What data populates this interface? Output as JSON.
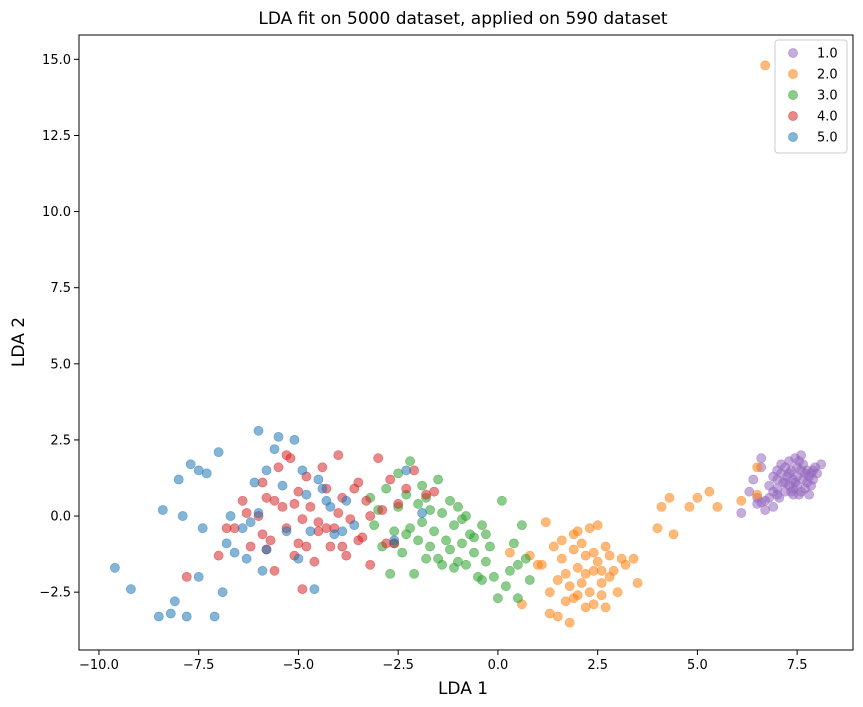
{
  "chart_data": {
    "type": "scatter",
    "title": "LDA fit on 5000 dataset, applied on 590 dataset",
    "xlabel": "LDA 1",
    "ylabel": "LDA 2",
    "xlim": [
      -10.5,
      8.9
    ],
    "ylim": [
      -4.4,
      15.8
    ],
    "xticks": [
      -10.0,
      -7.5,
      -5.0,
      -2.5,
      0.0,
      2.5,
      5.0,
      7.5
    ],
    "xtick_labels": [
      "−10.0",
      "−7.5",
      "−5.0",
      "−2.5",
      "0.0",
      "2.5",
      "5.0",
      "7.5"
    ],
    "yticks": [
      -2.5,
      0.0,
      2.5,
      5.0,
      7.5,
      10.0,
      12.5,
      15.0
    ],
    "ytick_labels": [
      "−2.5",
      "0.0",
      "2.5",
      "5.0",
      "7.5",
      "10.0",
      "12.5",
      "15.0"
    ],
    "grid": false,
    "legend_position": "top-right",
    "series": [
      {
        "name": "1.0",
        "color": "#9467bd",
        "points": [
          [
            6.1,
            0.1
          ],
          [
            6.3,
            0.8
          ],
          [
            6.4,
            1.2
          ],
          [
            6.5,
            0.6
          ],
          [
            6.5,
            0.4
          ],
          [
            6.6,
            1.6
          ],
          [
            6.6,
            1.9
          ],
          [
            6.7,
            0.5
          ],
          [
            6.7,
            0.2
          ],
          [
            6.8,
            1.0
          ],
          [
            6.8,
            0.6
          ],
          [
            6.9,
            1.3
          ],
          [
            6.9,
            0.8
          ],
          [
            7.0,
            1.5
          ],
          [
            7.0,
            1.2
          ],
          [
            7.0,
            0.9
          ],
          [
            7.05,
            0.6
          ],
          [
            7.1,
            1.7
          ],
          [
            7.1,
            1.4
          ],
          [
            7.15,
            1.1
          ],
          [
            7.2,
            0.8
          ],
          [
            7.2,
            1.6
          ],
          [
            7.25,
            1.3
          ],
          [
            7.3,
            1.0
          ],
          [
            7.3,
            1.8
          ],
          [
            7.35,
            1.5
          ],
          [
            7.4,
            1.2
          ],
          [
            7.4,
            0.9
          ],
          [
            7.45,
            1.9
          ],
          [
            7.5,
            1.6
          ],
          [
            7.5,
            1.3
          ],
          [
            7.5,
            1.0
          ],
          [
            7.55,
            0.7
          ],
          [
            7.6,
            2.0
          ],
          [
            7.6,
            1.5
          ],
          [
            7.65,
            1.2
          ],
          [
            7.7,
            0.9
          ],
          [
            7.7,
            1.4
          ],
          [
            7.75,
            1.1
          ],
          [
            7.8,
            1.3
          ],
          [
            7.8,
            0.7
          ],
          [
            7.85,
            1.0
          ],
          [
            7.9,
            1.5
          ],
          [
            7.9,
            1.2
          ],
          [
            7.95,
            1.6
          ],
          [
            8.0,
            1.4
          ],
          [
            8.1,
            1.7
          ],
          [
            7.6,
            0.8
          ],
          [
            7.4,
            0.7
          ],
          [
            7.3,
            1.4
          ],
          [
            7.2,
            1.1
          ],
          [
            7.65,
            1.7
          ],
          [
            7.55,
            1.8
          ],
          [
            7.45,
            1.1
          ],
          [
            7.35,
            0.8
          ],
          [
            7.75,
            1.5
          ],
          [
            7.85,
            1.4
          ],
          [
            6.9,
            0.3
          ],
          [
            6.6,
            0.45
          ],
          [
            7.0,
            0.7
          ]
        ]
      },
      {
        "name": "2.0",
        "color": "#ff7f0e",
        "points": [
          [
            0.3,
            -1.2
          ],
          [
            0.6,
            -2.9
          ],
          [
            0.8,
            -1.3
          ],
          [
            1.0,
            -1.6
          ],
          [
            1.2,
            -0.2
          ],
          [
            1.3,
            -3.2
          ],
          [
            1.3,
            -2.5
          ],
          [
            1.4,
            -1.0
          ],
          [
            1.5,
            -2.1
          ],
          [
            1.5,
            -3.3
          ],
          [
            1.6,
            -1.4
          ],
          [
            1.6,
            -0.8
          ],
          [
            1.7,
            -2.8
          ],
          [
            1.7,
            -1.9
          ],
          [
            1.8,
            -3.5
          ],
          [
            1.8,
            -2.3
          ],
          [
            1.9,
            -1.1
          ],
          [
            1.9,
            -0.6
          ],
          [
            2.0,
            -2.6
          ],
          [
            2.0,
            -1.7
          ],
          [
            2.1,
            -0.9
          ],
          [
            2.1,
            -2.2
          ],
          [
            2.2,
            -3.0
          ],
          [
            2.2,
            -1.3
          ],
          [
            2.3,
            -2.5
          ],
          [
            2.3,
            -0.4
          ],
          [
            2.4,
            -1.8
          ],
          [
            2.4,
            -2.9
          ],
          [
            2.5,
            -1.5
          ],
          [
            2.5,
            -0.3
          ],
          [
            2.6,
            -2.2
          ],
          [
            2.6,
            -2.6
          ],
          [
            2.7,
            -1.0
          ],
          [
            2.7,
            -3.0
          ],
          [
            2.8,
            -1.3
          ],
          [
            2.8,
            -2.0
          ],
          [
            2.9,
            -1.8
          ],
          [
            3.0,
            -2.5
          ],
          [
            3.1,
            -1.4
          ],
          [
            3.2,
            -1.6
          ],
          [
            3.4,
            -1.4
          ],
          [
            3.5,
            -2.2
          ],
          [
            2.2,
            -1.9
          ],
          [
            1.9,
            -2.7
          ],
          [
            2.0,
            -0.5
          ],
          [
            4.0,
            -0.4
          ],
          [
            4.1,
            0.3
          ],
          [
            4.3,
            0.6
          ],
          [
            4.4,
            -0.6
          ],
          [
            4.8,
            0.3
          ],
          [
            5.0,
            0.6
          ],
          [
            5.3,
            0.8
          ],
          [
            5.5,
            0.3
          ],
          [
            6.1,
            0.5
          ],
          [
            6.5,
            0.7
          ],
          [
            6.5,
            1.6
          ],
          [
            6.7,
            14.8
          ],
          [
            2.4,
            -1.2
          ],
          [
            1.1,
            -1.6
          ],
          [
            2.6,
            -1.8
          ]
        ]
      },
      {
        "name": "3.0",
        "color": "#2ca02c",
        "points": [
          [
            -3.2,
            0.6
          ],
          [
            -3.1,
            -0.3
          ],
          [
            -3.0,
            0.2
          ],
          [
            -2.9,
            -1.0
          ],
          [
            -2.8,
            0.9
          ],
          [
            -2.7,
            -1.9
          ],
          [
            -2.6,
            -0.5
          ],
          [
            -2.5,
            1.4
          ],
          [
            -2.5,
            0.3
          ],
          [
            -2.4,
            -1.2
          ],
          [
            -2.3,
            0.7
          ],
          [
            -2.2,
            -0.4
          ],
          [
            -2.2,
            1.8
          ],
          [
            -2.1,
            -1.9
          ],
          [
            -2.0,
            0.4
          ],
          [
            -2.0,
            -0.8
          ],
          [
            -1.9,
            1.0
          ],
          [
            -1.9,
            -0.2
          ],
          [
            -1.8,
            0.6
          ],
          [
            -1.7,
            -1.0
          ],
          [
            -1.7,
            0.2
          ],
          [
            -1.6,
            -0.5
          ],
          [
            -1.5,
            1.2
          ],
          [
            -1.5,
            -1.4
          ],
          [
            -1.4,
            0.1
          ],
          [
            -1.3,
            -0.8
          ],
          [
            -1.2,
            0.5
          ],
          [
            -1.2,
            -1.1
          ],
          [
            -1.1,
            -0.3
          ],
          [
            -1.0,
            -1.5
          ],
          [
            -1.0,
            0.3
          ],
          [
            -0.9,
            -0.9
          ],
          [
            -0.8,
            -1.6
          ],
          [
            -0.8,
            0.0
          ],
          [
            -0.7,
            -0.6
          ],
          [
            -0.6,
            -1.2
          ],
          [
            -0.5,
            -2.0
          ],
          [
            -0.4,
            -0.3
          ],
          [
            -0.3,
            -1.5
          ],
          [
            -0.2,
            -1.0
          ],
          [
            -0.1,
            -2.0
          ],
          [
            0.0,
            -2.7
          ],
          [
            0.1,
            0.5
          ],
          [
            0.2,
            -2.3
          ],
          [
            0.3,
            -1.8
          ],
          [
            0.4,
            -0.9
          ],
          [
            0.5,
            -2.7
          ],
          [
            0.6,
            -0.3
          ],
          [
            0.7,
            -1.4
          ],
          [
            0.8,
            -2.1
          ],
          [
            -1.4,
            -1.6
          ],
          [
            -2.3,
            -0.6
          ],
          [
            -0.9,
            -0.1
          ],
          [
            -0.6,
            -0.7
          ],
          [
            -1.8,
            -1.4
          ],
          [
            -2.6,
            -0.9
          ],
          [
            -0.3,
            -0.6
          ],
          [
            0.5,
            -1.6
          ],
          [
            -1.1,
            -1.7
          ],
          [
            -0.4,
            -2.1
          ]
        ]
      },
      {
        "name": "4.0",
        "color": "#d62728",
        "points": [
          [
            -7.8,
            -2.0
          ],
          [
            -7.0,
            -1.3
          ],
          [
            -6.8,
            -0.4
          ],
          [
            -6.4,
            0.5
          ],
          [
            -6.2,
            -1.0
          ],
          [
            -6.0,
            0.0
          ],
          [
            -5.9,
            1.1
          ],
          [
            -5.8,
            0.6
          ],
          [
            -5.7,
            -0.8
          ],
          [
            -5.6,
            -1.8
          ],
          [
            -5.5,
            1.6
          ],
          [
            -5.4,
            0.3
          ],
          [
            -5.3,
            -0.4
          ],
          [
            -5.2,
            1.9
          ],
          [
            -5.1,
            -1.3
          ],
          [
            -5.0,
            0.8
          ],
          [
            -5.0,
            -0.9
          ],
          [
            -4.9,
            -2.4
          ],
          [
            -4.8,
            1.3
          ],
          [
            -4.7,
            0.3
          ],
          [
            -4.6,
            -1.5
          ],
          [
            -4.5,
            -0.2
          ],
          [
            -4.4,
            1.6
          ],
          [
            -4.3,
            0.9
          ],
          [
            -4.2,
            -1.0
          ],
          [
            -4.1,
            -0.4
          ],
          [
            -4.0,
            2.0
          ],
          [
            -3.9,
            0.6
          ],
          [
            -3.8,
            -1.3
          ],
          [
            -3.7,
            -0.1
          ],
          [
            -3.5,
            1.1
          ],
          [
            -3.4,
            -0.7
          ],
          [
            -3.3,
            0.5
          ],
          [
            -3.2,
            -1.6
          ],
          [
            -3.0,
            1.9
          ],
          [
            -2.9,
            0.2
          ],
          [
            -2.8,
            -0.9
          ],
          [
            -2.7,
            1.2
          ],
          [
            -2.5,
            0.4
          ],
          [
            -2.3,
            0.9
          ],
          [
            -2.1,
            1.5
          ],
          [
            -1.8,
            0.7
          ],
          [
            -1.6,
            0.8
          ],
          [
            -6.6,
            -0.4
          ],
          [
            -5.8,
            -1.1
          ],
          [
            -4.5,
            -0.5
          ],
          [
            -3.6,
            0.9
          ],
          [
            -5.3,
            2.0
          ],
          [
            -4.8,
            -1.0
          ],
          [
            -6.3,
            0.1
          ],
          [
            -4.3,
            -0.4
          ],
          [
            -3.9,
            -1.0
          ],
          [
            -5.1,
            0.4
          ],
          [
            -2.6,
            -0.9
          ],
          [
            -3.2,
            0.0
          ],
          [
            -5.6,
            0.5
          ],
          [
            -4.9,
            -0.1
          ],
          [
            -3.5,
            -0.8
          ],
          [
            -5.9,
            -0.6
          ],
          [
            -4.0,
            0.1
          ]
        ]
      },
      {
        "name": "5.0",
        "color": "#1f77b4",
        "points": [
          [
            -9.6,
            -1.7
          ],
          [
            -9.2,
            -2.4
          ],
          [
            -8.4,
            0.2
          ],
          [
            -8.2,
            -3.2
          ],
          [
            -8.1,
            -2.8
          ],
          [
            -8.0,
            1.2
          ],
          [
            -7.9,
            0.0
          ],
          [
            -7.7,
            1.7
          ],
          [
            -7.5,
            1.5
          ],
          [
            -7.5,
            -2.0
          ],
          [
            -7.4,
            -0.4
          ],
          [
            -7.3,
            1.4
          ],
          [
            -7.1,
            -3.3
          ],
          [
            -7.0,
            2.1
          ],
          [
            -6.9,
            -2.5
          ],
          [
            -6.8,
            -0.9
          ],
          [
            -6.7,
            0.0
          ],
          [
            -6.6,
            -1.2
          ],
          [
            -6.4,
            -0.4
          ],
          [
            -6.3,
            -1.4
          ],
          [
            -6.2,
            -0.2
          ],
          [
            -6.1,
            1.1
          ],
          [
            -6.0,
            2.8
          ],
          [
            -5.9,
            -1.8
          ],
          [
            -5.8,
            1.5
          ],
          [
            -5.8,
            -1.1
          ],
          [
            -5.6,
            2.2
          ],
          [
            -5.5,
            2.6
          ],
          [
            -5.4,
            1.0
          ],
          [
            -5.3,
            -0.5
          ],
          [
            -5.1,
            2.5
          ],
          [
            -5.0,
            -1.4
          ],
          [
            -4.9,
            1.5
          ],
          [
            -4.8,
            0.7
          ],
          [
            -4.7,
            -0.5
          ],
          [
            -4.6,
            -2.4
          ],
          [
            -4.5,
            1.2
          ],
          [
            -4.4,
            0.9
          ],
          [
            -4.3,
            0.5
          ],
          [
            -4.2,
            0.3
          ],
          [
            -4.1,
            -0.6
          ],
          [
            -3.9,
            -0.5
          ],
          [
            -3.8,
            0.5
          ],
          [
            -3.6,
            -0.3
          ],
          [
            -2.6,
            -0.8
          ],
          [
            -2.3,
            1.5
          ],
          [
            -1.9,
            0.1
          ],
          [
            -8.5,
            -3.3
          ],
          [
            -6.0,
            0.1
          ],
          [
            -7.8,
            -3.3
          ]
        ]
      }
    ]
  }
}
